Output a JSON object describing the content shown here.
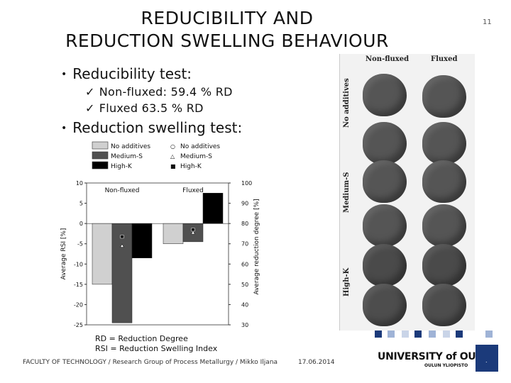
{
  "slide": {
    "title_line1": "REDUCIBILITY AND",
    "title_line2": "REDUCTION SWELLING BEHAVIOUR",
    "number": "11"
  },
  "bullets": [
    {
      "text": "Reducibility test:",
      "items": [
        "Non-fluxed: 59.4 % RD",
        "Fluxed 63.5 % RD"
      ]
    },
    {
      "text": "Reduction swelling test:"
    }
  ],
  "chart_data": {
    "type": "bar",
    "categories": [
      "Non-fluxed",
      "Fluxed"
    ],
    "series": [
      {
        "name": "No additives",
        "color": "#d0d0d0",
        "values": [
          -15,
          -5
        ]
      },
      {
        "name": "Medium-S",
        "color": "#505050",
        "values": [
          -24.5,
          -4.5
        ]
      },
      {
        "name": "High-K",
        "color": "#000000",
        "values": [
          -8.5,
          7.5
        ]
      }
    ],
    "rd_series": [
      {
        "name": "No additives",
        "marker": "circle",
        "values": [
          null,
          76.5
        ]
      },
      {
        "name": "Medium-S",
        "marker": "triangle",
        "values": [
          69,
          75.5
        ]
      },
      {
        "name": "High-K",
        "marker": "square",
        "values": [
          73.5,
          77
        ]
      }
    ],
    "ylabel_left": "Average RSI [%]",
    "ylabel_right": "Average reduction degree [%]",
    "ylim_left": [
      -25,
      10
    ],
    "yticks_left": [
      "10",
      "5",
      "0",
      "-5",
      "-10",
      "-15",
      "-20",
      "-25"
    ],
    "ylim_right": [
      30,
      100
    ],
    "yticks_right": [
      "100",
      "90",
      "80",
      "70",
      "60",
      "50",
      "40",
      "30"
    ],
    "legend_placement": "top"
  },
  "photo": {
    "col_labels": [
      "Non-fluxed",
      "Fluxed"
    ],
    "row_labels": [
      "No additives",
      "Medium-S",
      "High-K"
    ]
  },
  "notes": [
    "RD = Reduction Degree",
    "RSI = Reduction Swelling Index"
  ],
  "footer": {
    "left": "FACULTY OF TECHNOLOGY / Research Group of Process Metallurgy / Mikko Iljana",
    "date": "17.06.2014",
    "university": "UNIVERSITY of OULU",
    "university_fi": "OULUN YLIOPISTO"
  },
  "colors": {
    "accent": "#1b3a7a"
  }
}
